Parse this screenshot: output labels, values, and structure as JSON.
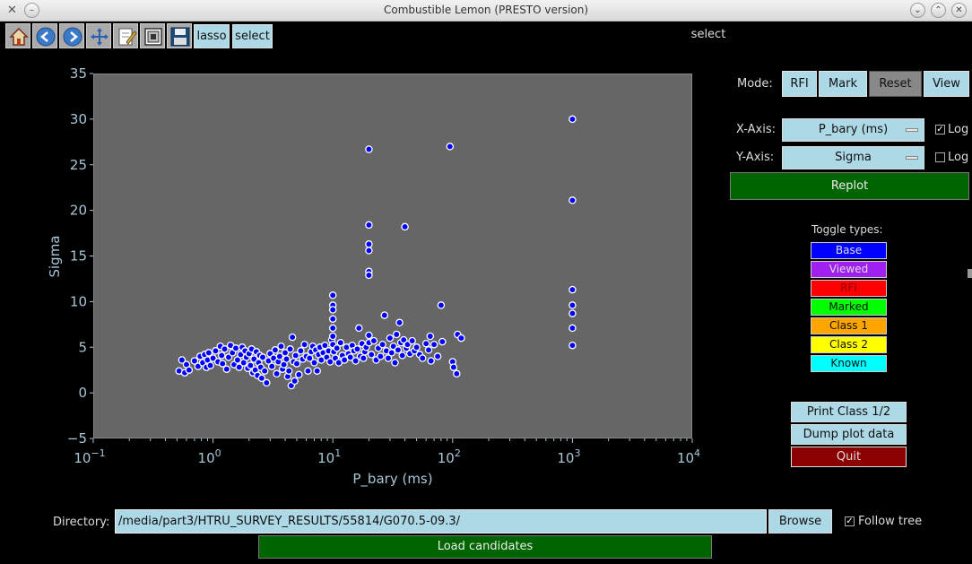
{
  "window": {
    "title": "Combustible Lemon (PRESTO version)"
  },
  "toolbar": {
    "icons": [
      "home-icon",
      "back-icon",
      "forward-icon",
      "pan-icon",
      "edit-icon",
      "configure-icon",
      "save-icon"
    ],
    "lasso_label": "lasso",
    "select_label": "select",
    "status": "select"
  },
  "controls": {
    "mode_label": "Mode:",
    "mode_buttons": [
      "RFI",
      "Mark",
      "Reset",
      "View"
    ],
    "active_mode": "Reset",
    "xaxis_label": "X-Axis:",
    "xaxis_value": "P_bary (ms)",
    "xaxis_log": true,
    "yaxis_label": "Y-Axis:",
    "yaxis_value": "Sigma",
    "yaxis_log": false,
    "log_label": "Log",
    "replot_label": "Replot"
  },
  "toggle_types": {
    "title": "Toggle types:",
    "items": [
      {
        "label": "Base",
        "bg": "#0000ff",
        "fg": "#dddddd"
      },
      {
        "label": "Viewed",
        "bg": "#a020f0",
        "fg": "#dddddd"
      },
      {
        "label": "RFI",
        "bg": "#ff0000",
        "fg": "#880000"
      },
      {
        "label": "Marked",
        "bg": "#00ff00",
        "fg": "#111111"
      },
      {
        "label": "Class 1",
        "bg": "#ffa500",
        "fg": "#111111"
      },
      {
        "label": "Class 2",
        "bg": "#ffff00",
        "fg": "#111111"
      },
      {
        "label": "Known",
        "bg": "#00ffff",
        "fg": "#111111"
      }
    ]
  },
  "actions": {
    "print_label": "Print Class 1/2",
    "dump_label": "Dump plot data",
    "quit_label": "Quit"
  },
  "bottom": {
    "directory_label": "Directory:",
    "directory_value": "/media/part3/HTRU_SURVEY_RESULTS/55814/G070.5-09.3/",
    "browse_label": "Browse",
    "follow_tree_label": "Follow tree",
    "follow_tree_checked": true,
    "load_label": "Load candidates"
  },
  "chart_data": {
    "type": "scatter",
    "xlabel": "P_bary (ms)",
    "ylabel": "Sigma",
    "xscale": "log",
    "xlim": [
      0.1,
      10000
    ],
    "ylim": [
      -5,
      35
    ],
    "xticks": [
      {
        "base": "10",
        "exp": "−1",
        "value": 0.1
      },
      {
        "base": "10",
        "exp": "0",
        "value": 1
      },
      {
        "base": "10",
        "exp": "1",
        "value": 10
      },
      {
        "base": "10",
        "exp": "2",
        "value": 100
      },
      {
        "base": "10",
        "exp": "3",
        "value": 1000
      },
      {
        "base": "10",
        "exp": "4",
        "value": 10000
      }
    ],
    "yticks": [
      "−5",
      "0",
      "5",
      "10",
      "15",
      "20",
      "25",
      "30",
      "35"
    ],
    "point_color": "#0000ff",
    "points": [
      [
        0.52,
        2.4
      ],
      [
        0.55,
        3.6
      ],
      [
        0.58,
        2.2
      ],
      [
        0.6,
        3.1
      ],
      [
        0.63,
        2.5
      ],
      [
        0.7,
        3.5
      ],
      [
        0.75,
        2.9
      ],
      [
        0.78,
        4.0
      ],
      [
        0.82,
        3.3
      ],
      [
        0.85,
        4.2
      ],
      [
        0.88,
        2.8
      ],
      [
        0.9,
        3.6
      ],
      [
        0.92,
        4.4
      ],
      [
        0.95,
        3.0
      ],
      [
        1.0,
        3.8
      ],
      [
        1.05,
        4.6
      ],
      [
        1.1,
        3.4
      ],
      [
        1.15,
        5.1
      ],
      [
        1.18,
        4.1
      ],
      [
        1.2,
        3.2
      ],
      [
        1.25,
        4.8
      ],
      [
        1.3,
        2.6
      ],
      [
        1.35,
        3.9
      ],
      [
        1.4,
        5.2
      ],
      [
        1.45,
        4.4
      ],
      [
        1.5,
        3.1
      ],
      [
        1.55,
        4.9
      ],
      [
        1.6,
        3.6
      ],
      [
        1.65,
        2.8
      ],
      [
        1.7,
        4.2
      ],
      [
        1.75,
        5.0
      ],
      [
        1.8,
        3.3
      ],
      [
        1.85,
        4.6
      ],
      [
        1.9,
        3.9
      ],
      [
        1.95,
        2.7
      ],
      [
        2.0,
        4.3
      ],
      [
        2.05,
        3.0
      ],
      [
        2.1,
        4.8
      ],
      [
        2.15,
        2.2
      ],
      [
        2.2,
        3.7
      ],
      [
        2.25,
        2.5
      ],
      [
        2.3,
        4.5
      ],
      [
        2.35,
        1.9
      ],
      [
        2.4,
        3.3
      ],
      [
        2.45,
        4.1
      ],
      [
        2.5,
        2.8
      ],
      [
        2.55,
        1.6
      ],
      [
        2.6,
        3.9
      ],
      [
        2.7,
        2.4
      ],
      [
        2.8,
        1.1
      ],
      [
        2.9,
        3.5
      ],
      [
        3.0,
        4.3
      ],
      [
        3.1,
        2.9
      ],
      [
        3.2,
        3.8
      ],
      [
        3.3,
        4.7
      ],
      [
        3.4,
        2.1
      ],
      [
        3.5,
        3.4
      ],
      [
        3.6,
        4.0
      ],
      [
        3.7,
        5.1
      ],
      [
        3.8,
        2.6
      ],
      [
        3.9,
        3.1
      ],
      [
        4.0,
        4.4
      ],
      [
        4.1,
        3.7
      ],
      [
        4.2,
        1.8
      ],
      [
        4.3,
        2.4
      ],
      [
        4.4,
        4.8
      ],
      [
        4.5,
        0.8
      ],
      [
        4.6,
        6.1
      ],
      [
        4.7,
        3.4
      ],
      [
        4.8,
        1.3
      ],
      [
        4.9,
        4.1
      ],
      [
        5.0,
        3.2
      ],
      [
        5.2,
        2.0
      ],
      [
        5.4,
        4.6
      ],
      [
        5.6,
        3.7
      ],
      [
        5.8,
        5.3
      ],
      [
        6.0,
        4.0
      ],
      [
        6.2,
        2.4
      ],
      [
        6.4,
        3.8
      ],
      [
        6.6,
        4.5
      ],
      [
        6.8,
        5.1
      ],
      [
        7.0,
        3.3
      ],
      [
        7.2,
        4.7
      ],
      [
        7.4,
        2.4
      ],
      [
        7.6,
        4.2
      ],
      [
        7.8,
        5.0
      ],
      [
        8.0,
        3.6
      ],
      [
        8.3,
        4.4
      ],
      [
        8.6,
        5.2
      ],
      [
        8.9,
        3.9
      ],
      [
        9.2,
        4.6
      ],
      [
        9.5,
        3.4
      ],
      [
        9.8,
        5.8
      ],
      [
        10.0,
        10.7
      ],
      [
        10.0,
        9.6
      ],
      [
        10.0,
        9.1
      ],
      [
        10.0,
        8.1
      ],
      [
        10.0,
        7.1
      ],
      [
        10.0,
        6.2
      ],
      [
        10.0,
        5.3
      ],
      [
        10.2,
        4.5
      ],
      [
        10.5,
        3.8
      ],
      [
        10.8,
        4.9
      ],
      [
        11.2,
        3.3
      ],
      [
        11.6,
        5.5
      ],
      [
        12.0,
        4.1
      ],
      [
        12.5,
        3.6
      ],
      [
        13.0,
        5.0
      ],
      [
        13.5,
        4.3
      ],
      [
        14.0,
        3.9
      ],
      [
        14.5,
        5.2
      ],
      [
        15.0,
        4.6
      ],
      [
        15.5,
        3.5
      ],
      [
        16.0,
        4.8
      ],
      [
        16.5,
        7.1
      ],
      [
        17.0,
        4.0
      ],
      [
        17.5,
        5.4
      ],
      [
        18.0,
        3.8
      ],
      [
        18.5,
        4.5
      ],
      [
        19.0,
        5.0
      ],
      [
        20.0,
        26.7
      ],
      [
        20.0,
        18.4
      ],
      [
        20.0,
        16.3
      ],
      [
        20.0,
        15.6
      ],
      [
        20.0,
        13.3
      ],
      [
        20.0,
        12.9
      ],
      [
        20.0,
        6.3
      ],
      [
        20.0,
        5.5
      ],
      [
        21.0,
        4.2
      ],
      [
        22.0,
        5.7
      ],
      [
        23.0,
        3.6
      ],
      [
        24.0,
        4.9
      ],
      [
        25.0,
        4.0
      ],
      [
        26.0,
        5.3
      ],
      [
        27.0,
        8.5
      ],
      [
        28.0,
        4.6
      ],
      [
        29.0,
        3.8
      ],
      [
        30.0,
        6.0
      ],
      [
        31.0,
        4.4
      ],
      [
        32.0,
        5.1
      ],
      [
        33.0,
        3.3
      ],
      [
        34.0,
        6.4
      ],
      [
        35.0,
        4.7
      ],
      [
        36.0,
        7.7
      ],
      [
        37.0,
        5.5
      ],
      [
        38.0,
        4.1
      ],
      [
        39.0,
        5.8
      ],
      [
        40.0,
        18.2
      ],
      [
        41.0,
        4.9
      ],
      [
        42.0,
        5.3
      ],
      [
        44.0,
        4.3
      ],
      [
        46.0,
        5.7
      ],
      [
        48.0,
        4.6
      ],
      [
        50.0,
        5.0
      ],
      [
        53.0,
        4.2
      ],
      [
        56.0,
        3.8
      ],
      [
        60.0,
        5.4
      ],
      [
        63.0,
        4.7
      ],
      [
        65.0,
        6.2
      ],
      [
        66.0,
        3.5
      ],
      [
        70.0,
        5.3
      ],
      [
        75.0,
        4.0
      ],
      [
        80.0,
        9.6
      ],
      [
        82.0,
        5.6
      ],
      [
        95.0,
        27.0
      ],
      [
        100.0,
        3.4
      ],
      [
        102.0,
        2.8
      ],
      [
        108.0,
        2.1
      ],
      [
        110.0,
        6.4
      ],
      [
        118.0,
        6.0
      ],
      [
        1000.0,
        30.0
      ],
      [
        1000.0,
        21.1
      ],
      [
        1000.0,
        11.3
      ],
      [
        1000.0,
        9.6
      ],
      [
        1000.0,
        8.7
      ],
      [
        1000.0,
        7.1
      ],
      [
        1000.0,
        5.2
      ]
    ]
  }
}
